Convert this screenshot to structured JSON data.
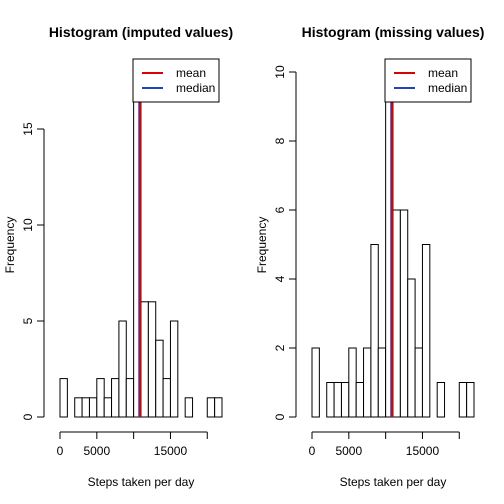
{
  "chart_data": [
    {
      "type": "bar",
      "title": "Histogram (imputed values)",
      "xlabel": "Steps taken per day",
      "ylabel": "Frequency",
      "bin_width": 1000,
      "bins_start": [
        0,
        1000,
        2000,
        3000,
        4000,
        5000,
        6000,
        7000,
        8000,
        9000,
        10000,
        11000,
        12000,
        13000,
        14000,
        15000,
        16000,
        17000,
        18000,
        19000,
        20000,
        21000
      ],
      "values": [
        2,
        0,
        1,
        1,
        1,
        2,
        1,
        2,
        5,
        2,
        18,
        6,
        6,
        4,
        2,
        5,
        0,
        1,
        0,
        0,
        1,
        1
      ],
      "xlim": [
        0,
        22000
      ],
      "ylim": [
        0,
        18
      ],
      "x_ticks": [
        0,
        5000,
        15000
      ],
      "x_tick_labels": [
        "0",
        "5000",
        "15000"
      ],
      "x_axis_extent": [
        0,
        20000
      ],
      "y_ticks": [
        0,
        5,
        10,
        15
      ],
      "y_tick_labels": [
        "0",
        "5",
        "10",
        "15"
      ],
      "mean": 10766,
      "median": 10766,
      "legend": {
        "placement": "top-right",
        "entries": [
          {
            "label": "mean",
            "color": "#dd0000"
          },
          {
            "label": "median",
            "color": "#2244bb"
          }
        ]
      }
    },
    {
      "type": "bar",
      "title": "Histogram (missing values)",
      "xlabel": "Steps taken per day",
      "ylabel": "Frequency",
      "bin_width": 1000,
      "bins_start": [
        0,
        1000,
        2000,
        3000,
        4000,
        5000,
        6000,
        7000,
        8000,
        9000,
        10000,
        11000,
        12000,
        13000,
        14000,
        15000,
        16000,
        17000,
        18000,
        19000,
        20000,
        21000
      ],
      "values": [
        2,
        0,
        1,
        1,
        1,
        2,
        1,
        2,
        5,
        2,
        10,
        6,
        6,
        4,
        2,
        5,
        0,
        1,
        0,
        0,
        1,
        1
      ],
      "xlim": [
        0,
        22000
      ],
      "ylim": [
        0,
        10
      ],
      "x_ticks": [
        0,
        5000,
        15000
      ],
      "x_tick_labels": [
        "0",
        "5000",
        "15000"
      ],
      "x_axis_extent": [
        0,
        20000
      ],
      "y_ticks": [
        0,
        2,
        4,
        6,
        8,
        10
      ],
      "y_tick_labels": [
        "0",
        "2",
        "4",
        "6",
        "8",
        "10"
      ],
      "mean": 10766,
      "median": 10765,
      "legend": {
        "placement": "top-right",
        "entries": [
          {
            "label": "mean",
            "color": "#dd0000"
          },
          {
            "label": "median",
            "color": "#2244bb"
          }
        ]
      }
    }
  ]
}
